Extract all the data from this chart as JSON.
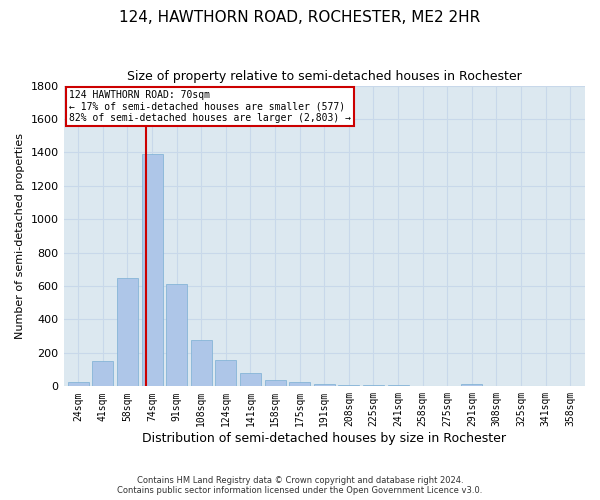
{
  "title": "124, HAWTHORN ROAD, ROCHESTER, ME2 2HR",
  "subtitle": "Size of property relative to semi-detached houses in Rochester",
  "xlabel": "Distribution of semi-detached houses by size in Rochester",
  "ylabel": "Number of semi-detached properties",
  "categories": [
    "24sqm",
    "41sqm",
    "58sqm",
    "74sqm",
    "91sqm",
    "108sqm",
    "124sqm",
    "141sqm",
    "158sqm",
    "175sqm",
    "191sqm",
    "208sqm",
    "225sqm",
    "241sqm",
    "258sqm",
    "275sqm",
    "291sqm",
    "308sqm",
    "325sqm",
    "341sqm",
    "358sqm"
  ],
  "values": [
    25,
    150,
    650,
    1390,
    610,
    275,
    155,
    80,
    40,
    25,
    15,
    10,
    8,
    5,
    3,
    2,
    15,
    2,
    1,
    1,
    1
  ],
  "bar_color": "#aec6e8",
  "bar_edge_color": "#7aafd4",
  "property_label": "124 HAWTHORN ROAD: 70sqm",
  "annotation_line1": "← 17% of semi-detached houses are smaller (577)",
  "annotation_line2": "82% of semi-detached houses are larger (2,803) →",
  "vline_color": "#cc0000",
  "annotation_box_color": "#cc0000",
  "ylim": [
    0,
    1800
  ],
  "yticks": [
    0,
    200,
    400,
    600,
    800,
    1000,
    1200,
    1400,
    1600,
    1800
  ],
  "grid_color": "#c8d8ea",
  "background_color": "#dce8f0",
  "footer1": "Contains HM Land Registry data © Crown copyright and database right 2024.",
  "footer2": "Contains public sector information licensed under the Open Government Licence v3.0.",
  "title_fontsize": 11,
  "subtitle_fontsize": 9,
  "xlabel_fontsize": 9,
  "ylabel_fontsize": 8,
  "vline_x": 2.75
}
